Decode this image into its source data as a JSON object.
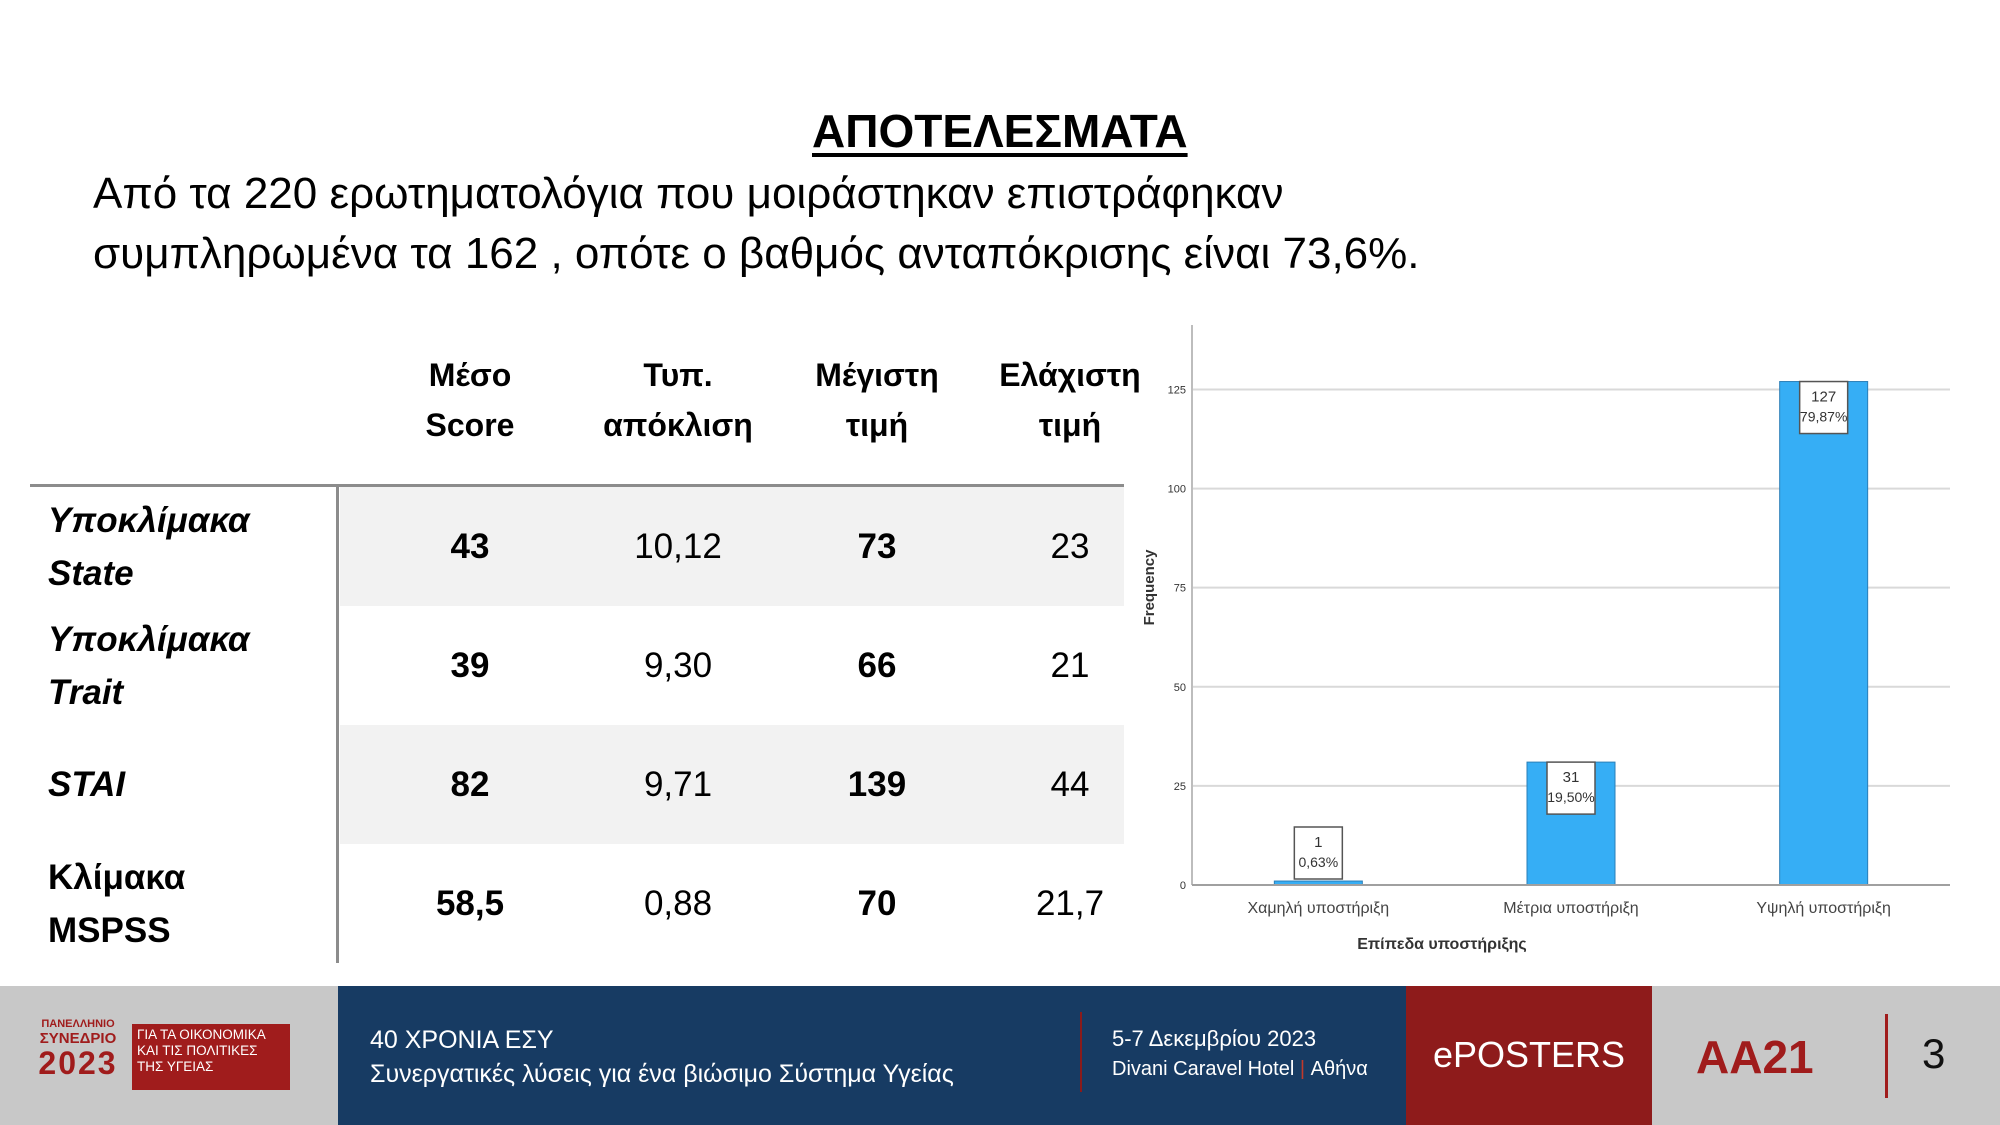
{
  "slide": {
    "title": "ΑΠΟΤΕΛΕΣΜΑΤΑ",
    "intro_line1": "Από τα 220 ερωτηματολόγια που μοιράστηκαν επιστράφηκαν",
    "intro_line2": "συμπληρωμένα τα 162 , οπότε ο βαθμός ανταπόκρισης είναι 73,6%."
  },
  "table": {
    "headers": [
      {
        "line1": "Μέσο",
        "line2": "Score"
      },
      {
        "line1": "Τυπ.",
        "line2": "απόκλιση"
      },
      {
        "line1": "Μέγιστη",
        "line2": "τιμή"
      },
      {
        "line1": "Ελάχιστη",
        "line2": "τιμή"
      }
    ],
    "rows": [
      {
        "label1": "Υποκλίμακα",
        "label2": "State",
        "mean": "43",
        "sd": "10,12",
        "max": "73",
        "min": "23"
      },
      {
        "label1": "Υποκλίμακα",
        "label2": "Trait",
        "mean": "39",
        "sd": "9,30",
        "max": "66",
        "min": "21"
      },
      {
        "label1": "STAI",
        "label2": "",
        "mean": "82",
        "sd": "9,71",
        "max": "139",
        "min": "44"
      },
      {
        "label1": "Κλίμακα",
        "label2": "MSPSS",
        "mean": "58,5",
        "sd": "0,88",
        "max": "70",
        "min": "21,7"
      }
    ]
  },
  "chart_data": {
    "type": "bar",
    "categories": [
      "Χαμηλή υποστήριξη",
      "Μέτρια υποστήριξη",
      "Υψηλή υποστήριξη"
    ],
    "values": [
      1,
      31,
      127
    ],
    "data_labels": [
      {
        "count": "1",
        "percent": "0,63%"
      },
      {
        "count": "31",
        "percent": "19,50%"
      },
      {
        "count": "127",
        "percent": "79,87%"
      }
    ],
    "xlabel": "Επίπεδα υποστήριξης",
    "ylabel": "Frequency",
    "yticks": [
      0,
      25,
      50,
      75,
      100,
      125
    ],
    "ylim": [
      0,
      140
    ],
    "grid": true,
    "bar_color": "#36aef5",
    "gridline_color": "#d9d9d9"
  },
  "footer": {
    "logo_line1": "ΠΑΝΕΛΛΗΝΙΟ",
    "logo_line2": "ΣΥΝΕΔΡΙΟ",
    "logo_year": "2023",
    "logo_tag1": "ΓΙΑ ΤΑ ΟΙΚΟΝΟΜΙΚΑ",
    "logo_tag2": "ΚΑΙ ΤΙΣ ΠΟΛΙΤΙΚΕΣ",
    "logo_tag3": "ΤΗΣ ΥΓΕΙΑΣ",
    "event_line1": "40 ΧΡΟΝΙΑ ΕΣΥ",
    "event_line2": "Συνεργατικές λύσεις για ένα βιώσιμο Σύστημα Υγείας",
    "dates": "5-7 Δεκεμβρίου 2023",
    "venue": "Divani Caravel Hotel",
    "city": "Αθήνα",
    "eposters": "ePOSTERS",
    "code": "AA21",
    "page": "3"
  }
}
